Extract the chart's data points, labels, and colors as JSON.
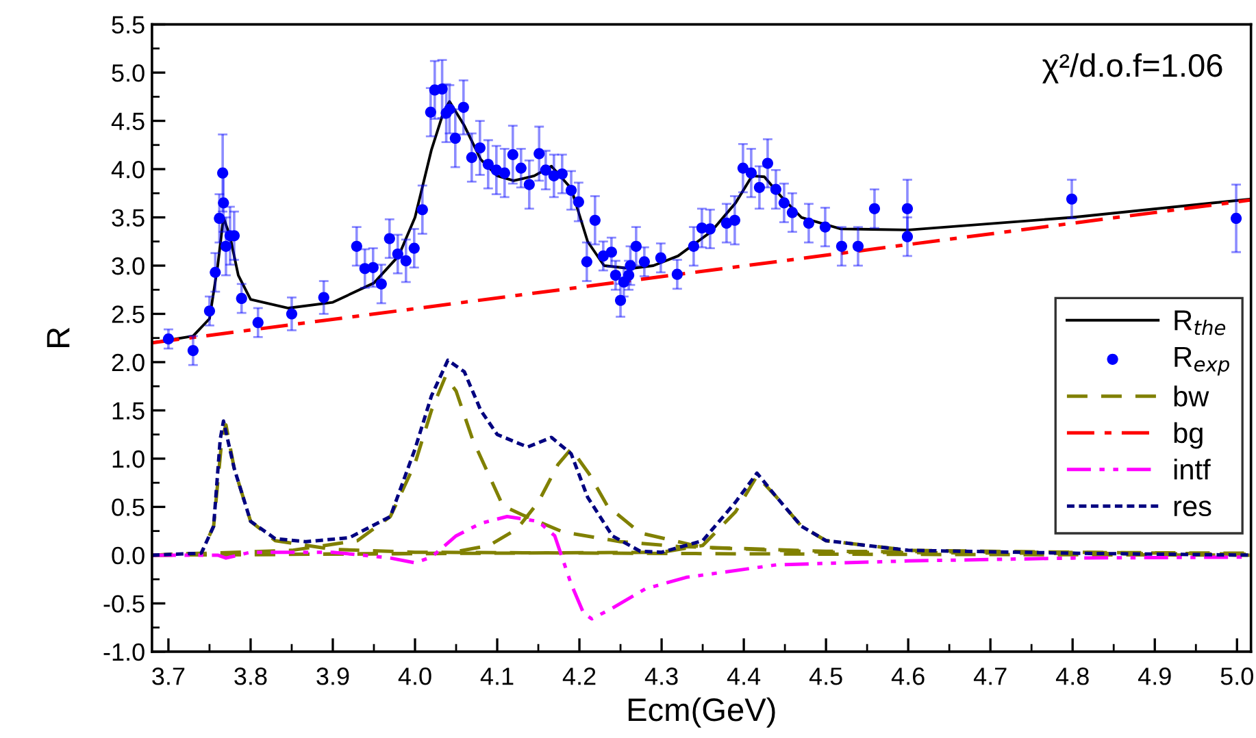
{
  "chart_data": {
    "type": "line",
    "xlabel": "Ecm(GeV)",
    "ylabel": "R",
    "xlim": [
      3.68,
      5.017
    ],
    "ylim": [
      -1.0,
      5.5
    ],
    "xticks": [
      {
        "value": 3.7,
        "label": "3.7"
      },
      {
        "value": 3.8,
        "label": "3.8"
      },
      {
        "value": 3.9,
        "label": "3.9"
      },
      {
        "value": 4.0,
        "label": "4.0"
      },
      {
        "value": 4.1,
        "label": "4.1"
      },
      {
        "value": 4.2,
        "label": "4.2"
      },
      {
        "value": 4.3,
        "label": "4.3"
      },
      {
        "value": 4.4,
        "label": "4.4"
      },
      {
        "value": 4.5,
        "label": "4.5"
      },
      {
        "value": 4.6,
        "label": "4.6"
      },
      {
        "value": 4.7,
        "label": "4.7"
      },
      {
        "value": 4.8,
        "label": "4.8"
      },
      {
        "value": 4.9,
        "label": "4.9"
      },
      {
        "value": 5.0,
        "label": "5.0"
      }
    ],
    "yticks": [
      {
        "value": -1.0,
        "label": "-1.0"
      },
      {
        "value": -0.5,
        "label": "-0.5"
      },
      {
        "value": 0.0,
        "label": "0.0"
      },
      {
        "value": 0.5,
        "label": "0.5"
      },
      {
        "value": 1.0,
        "label": "1.0"
      },
      {
        "value": 1.5,
        "label": "1.5"
      },
      {
        "value": 2.0,
        "label": "2.0"
      },
      {
        "value": 2.5,
        "label": "2.5"
      },
      {
        "value": 3.0,
        "label": "3.0"
      },
      {
        "value": 3.5,
        "label": "3.5"
      },
      {
        "value": 4.0,
        "label": "4.0"
      },
      {
        "value": 4.5,
        "label": "4.5"
      },
      {
        "value": 5.0,
        "label": "5.0"
      },
      {
        "value": 5.5,
        "label": "5.5"
      }
    ],
    "grid": false,
    "legend": "bottom right",
    "annotations": [
      "χ²/d.o.f=1.06"
    ],
    "series": [
      {
        "name": "R$_{the}$",
        "color": "#000000",
        "line_style": "solid",
        "x": [
          3.68,
          3.73,
          3.75,
          3.76,
          3.767,
          3.775,
          3.785,
          3.8,
          3.846,
          3.9,
          3.95,
          3.98,
          4.0,
          4.02,
          4.035,
          4.042,
          4.06,
          4.08,
          4.1,
          4.12,
          4.145,
          4.166,
          4.19,
          4.21,
          4.23,
          4.262,
          4.29,
          4.32,
          4.36,
          4.39,
          4.41,
          4.425,
          4.445,
          4.47,
          4.518,
          4.6,
          4.8,
          5.017
        ],
        "values": [
          2.2,
          2.27,
          2.45,
          3.0,
          3.5,
          3.3,
          2.9,
          2.65,
          2.56,
          2.62,
          2.82,
          3.1,
          3.5,
          4.2,
          4.6,
          4.7,
          4.45,
          4.1,
          3.93,
          3.88,
          3.93,
          4.03,
          3.8,
          3.25,
          3.0,
          2.97,
          3.0,
          3.1,
          3.35,
          3.65,
          3.93,
          3.92,
          3.72,
          3.5,
          3.38,
          3.37,
          3.5,
          3.69
        ]
      },
      {
        "name": "R$_{exp}$",
        "type": "scatter",
        "color": "#0000ff",
        "marker": "circle",
        "x": [
          3.7,
          3.73,
          3.75,
          3.757,
          3.762,
          3.766,
          3.767,
          3.77,
          3.775,
          3.78,
          3.789,
          3.809,
          3.85,
          3.889,
          3.929,
          3.939,
          3.949,
          3.959,
          3.969,
          3.979,
          3.989,
          3.999,
          4.009,
          4.019,
          4.024,
          4.033,
          4.038,
          4.042,
          4.049,
          4.059,
          4.069,
          4.079,
          4.089,
          4.099,
          4.109,
          4.119,
          4.129,
          4.139,
          4.151,
          4.159,
          4.169,
          4.179,
          4.19,
          4.199,
          4.209,
          4.219,
          4.229,
          4.239,
          4.244,
          4.25,
          4.254,
          4.26,
          4.262,
          4.269,
          4.279,
          4.299,
          4.319,
          4.339,
          4.349,
          4.359,
          4.379,
          4.389,
          4.399,
          4.409,
          4.419,
          4.429,
          4.439,
          4.449,
          4.459,
          4.479,
          4.499,
          4.519,
          4.539,
          4.559,
          4.599,
          4.599,
          4.799,
          4.999
        ],
        "values": [
          2.24,
          2.12,
          2.53,
          2.93,
          3.49,
          3.96,
          3.65,
          3.2,
          3.31,
          3.31,
          2.66,
          2.41,
          2.5,
          2.67,
          3.2,
          2.97,
          2.98,
          2.81,
          3.28,
          3.12,
          3.05,
          3.18,
          3.58,
          4.59,
          4.82,
          4.83,
          4.58,
          4.62,
          4.32,
          4.64,
          4.12,
          4.22,
          4.05,
          3.99,
          3.96,
          4.15,
          4.01,
          3.84,
          4.16,
          3.99,
          3.93,
          3.95,
          3.78,
          3.66,
          3.04,
          3.47,
          3.1,
          3.14,
          2.9,
          2.64,
          2.83,
          2.9,
          3.0,
          3.2,
          3.04,
          3.08,
          2.91,
          3.2,
          3.39,
          3.38,
          3.44,
          3.47,
          4.01,
          3.96,
          3.81,
          4.06,
          3.79,
          3.65,
          3.55,
          3.44,
          3.4,
          3.2,
          3.2,
          3.59,
          3.59,
          3.3,
          3.69,
          3.49
        ],
        "errors": [
          0.1,
          0.15,
          0.15,
          0.2,
          0.25,
          0.4,
          0.3,
          0.3,
          0.3,
          0.25,
          0.15,
          0.15,
          0.17,
          0.17,
          0.2,
          0.2,
          0.2,
          0.2,
          0.2,
          0.2,
          0.22,
          0.2,
          0.25,
          0.25,
          0.3,
          0.3,
          0.3,
          0.25,
          0.3,
          0.28,
          0.25,
          0.28,
          0.25,
          0.25,
          0.25,
          0.3,
          0.2,
          0.25,
          0.28,
          0.2,
          0.22,
          0.2,
          0.2,
          0.2,
          0.2,
          0.25,
          0.15,
          0.15,
          0.15,
          0.17,
          0.15,
          0.15,
          0.2,
          0.2,
          0.15,
          0.15,
          0.15,
          0.2,
          0.2,
          0.2,
          0.2,
          0.25,
          0.25,
          0.25,
          0.22,
          0.25,
          0.2,
          0.2,
          0.2,
          0.2,
          0.2,
          0.2,
          0.2,
          0.2,
          0.3,
          0.2,
          0.2,
          0.35
        ]
      },
      {
        "name": "bw",
        "color": "#808000",
        "line_style": "dashed",
        "x": [
          3.68,
          3.74,
          3.755,
          3.765,
          3.77,
          3.78,
          3.8,
          3.83,
          3.9,
          4.0,
          4.5,
          5.017
        ],
        "values": [
          0,
          0.02,
          0.3,
          1.2,
          1.35,
          0.9,
          0.35,
          0.15,
          0.06,
          0.03,
          0.01,
          0
        ]
      },
      {
        "type": "line",
        "color": "#808000",
        "line_style": "dashed",
        "x": [
          3.68,
          3.85,
          3.93,
          3.97,
          4.0,
          4.02,
          4.037,
          4.05,
          4.07,
          4.107,
          4.13,
          4.18,
          4.25,
          4.32,
          4.5,
          5.017
        ],
        "values": [
          0,
          0.05,
          0.15,
          0.4,
          0.95,
          1.5,
          1.85,
          1.7,
          1.2,
          0.51,
          0.42,
          0.24,
          0.14,
          0.09,
          0.04,
          0.02
        ]
      },
      {
        "type": "line",
        "color": "#808000",
        "line_style": "dashed",
        "x": [
          3.68,
          4.04,
          4.09,
          4.124,
          4.15,
          4.174,
          4.19,
          4.212,
          4.234,
          4.274,
          4.35,
          4.5,
          5.017
        ],
        "values": [
          0,
          0.02,
          0.1,
          0.27,
          0.55,
          0.94,
          1.1,
          0.84,
          0.51,
          0.23,
          0.08,
          0.03,
          0.01
        ]
      },
      {
        "type": "line",
        "color": "#808000",
        "line_style": "dashed",
        "x": [
          3.68,
          4.3,
          4.35,
          4.39,
          4.416,
          4.44,
          4.47,
          4.5,
          4.6,
          5.017
        ],
        "values": [
          0,
          0.03,
          0.1,
          0.45,
          0.82,
          0.6,
          0.3,
          0.15,
          0.05,
          0.01
        ]
      },
      {
        "name": "bg",
        "color": "#ff0000",
        "line_style": "dashdot",
        "x": [
          3.68,
          5.017
        ],
        "values": [
          2.2,
          3.68
        ]
      },
      {
        "name": "intf",
        "color": "#ff00ff",
        "line_style": "dashdotdot",
        "x": [
          3.68,
          3.76,
          3.77,
          3.8,
          3.9,
          3.97,
          4.0,
          4.02,
          4.05,
          4.08,
          4.112,
          4.15,
          4.17,
          4.19,
          4.205,
          4.215,
          4.24,
          4.28,
          4.33,
          4.44,
          4.6,
          4.8,
          5.017
        ],
        "values": [
          0,
          0,
          -0.03,
          0.03,
          0.03,
          -0.03,
          -0.08,
          -0.02,
          0.2,
          0.33,
          0.4,
          0.35,
          0.2,
          -0.3,
          -0.6,
          -0.66,
          -0.55,
          -0.35,
          -0.23,
          -0.1,
          -0.06,
          -0.03,
          -0.02
        ]
      },
      {
        "name": "res",
        "color": "#000080",
        "line_style": "dotted",
        "x": [
          3.68,
          3.74,
          3.755,
          3.763,
          3.767,
          3.78,
          3.8,
          3.83,
          3.867,
          3.92,
          3.97,
          4.0,
          4.02,
          4.04,
          4.06,
          4.08,
          4.1,
          4.137,
          4.166,
          4.19,
          4.21,
          4.24,
          4.274,
          4.3,
          4.35,
          4.39,
          4.416,
          4.44,
          4.47,
          4.5,
          4.6,
          4.8,
          5.017
        ],
        "values": [
          0,
          0.02,
          0.3,
          1.2,
          1.39,
          0.9,
          0.35,
          0.17,
          0.14,
          0.18,
          0.4,
          1.1,
          1.65,
          2.02,
          1.9,
          1.5,
          1.25,
          1.12,
          1.22,
          1.05,
          0.6,
          0.2,
          0.04,
          0.03,
          0.15,
          0.55,
          0.85,
          0.6,
          0.3,
          0.15,
          0.05,
          0.02,
          0
        ]
      }
    ]
  }
}
